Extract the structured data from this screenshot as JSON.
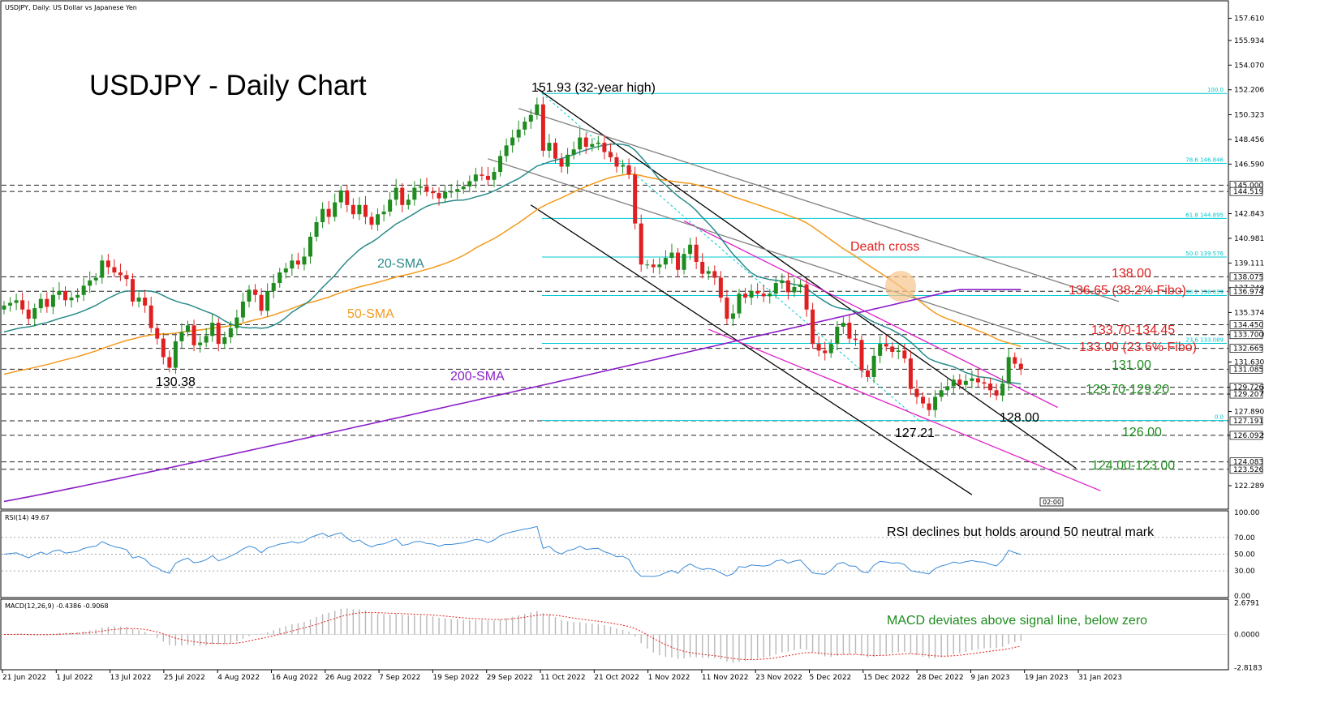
{
  "header": {
    "symbol_line": "USDJPY, Daily:  US Dollar vs Japanese Yen",
    "main_title": "USDJPY - Daily Chart"
  },
  "colors": {
    "bull": "#1e8c1e",
    "bear": "#e02020",
    "sma20": "#2a8a8a",
    "sma50": "#f39a1e",
    "sma200": "#8b1fc8",
    "fibo": "#00c8d0",
    "channel_black": "#000000",
    "channel_magenta": "#e020c8",
    "channel_gray": "#808080",
    "rsi": "#3a8ad6",
    "macd_signal": "#e02020"
  },
  "chart_data": [
    {
      "type": "candlestick",
      "ylim": [
        121.0,
        158.5
      ],
      "x_labels": [
        "21 Jun 2022",
        "1 Jul 2022",
        "13 Jul 2022",
        "25 Jul 2022",
        "4 Aug 2022",
        "16 Aug 2022",
        "26 Aug 2022",
        "7 Sep 2022",
        "19 Sep 2022",
        "29 Sep 2022",
        "11 Oct 2022",
        "21 Oct 2022",
        "1 Nov 2022",
        "11 Nov 2022",
        "23 Nov 2022",
        "5 Dec 2022",
        "15 Dec 2022",
        "28 Dec 2022",
        "9 Jan 2023",
        "19 Jan 2023",
        "31 Jan 2023"
      ],
      "y_ticks": [
        "157.610",
        "155.934",
        "154.070",
        "152.206",
        "150.323",
        "148.456",
        "146.590",
        "142.843",
        "140.981",
        "139.111",
        "137.240",
        "135.374",
        "133.700",
        "131.630",
        "129.726",
        "129.207",
        "127.890",
        "126.092",
        "122.289"
      ],
      "price_boxes": [
        "145.000",
        "144.519",
        "138.075",
        "136.974",
        "134.450",
        "133.700",
        "132.665",
        "131.085",
        "129.726",
        "129.207",
        "127.191",
        "126.092",
        "124.083",
        "123.526"
      ],
      "closes": [
        135.9,
        136.1,
        136.3,
        135.6,
        134.9,
        135.7,
        136.4,
        135.8,
        136.7,
        137.0,
        136.3,
        136.5,
        136.7,
        137.4,
        137.8,
        138.0,
        139.3,
        138.8,
        138.4,
        138.2,
        137.9,
        136.2,
        136.5,
        135.9,
        134.2,
        133.4,
        132.0,
        131.2,
        133.2,
        133.9,
        134.4,
        132.9,
        133.1,
        133.6,
        134.6,
        133.0,
        133.5,
        134.2,
        135.0,
        136.2,
        137.1,
        136.7,
        135.5,
        137.0,
        137.6,
        138.4,
        138.7,
        139.3,
        139.0,
        139.6,
        141.1,
        142.2,
        143.2,
        142.6,
        143.7,
        144.6,
        143.5,
        142.8,
        143.5,
        142.6,
        142.0,
        142.8,
        143.0,
        143.9,
        144.8,
        143.5,
        143.9,
        144.8,
        144.9,
        144.5,
        144.4,
        144.0,
        144.5,
        144.5,
        144.7,
        144.9,
        145.3,
        145.8,
        145.7,
        145.4,
        146.0,
        147.2,
        148.0,
        148.6,
        149.2,
        149.8,
        150.3,
        151.1,
        147.6,
        148.2,
        147.0,
        146.4,
        147.3,
        147.7,
        148.6,
        147.9,
        148.1,
        148.2,
        147.5,
        147.1,
        146.4,
        146.5,
        145.8,
        142.1,
        139.0,
        139.0,
        138.8,
        139.0,
        139.5,
        139.9,
        138.6,
        139.8,
        140.5,
        139.2,
        138.3,
        138.5,
        138.0,
        136.5,
        134.9,
        135.3,
        136.8,
        136.5,
        137.0,
        136.8,
        136.6,
        136.8,
        137.6,
        137.8,
        136.9,
        137.3,
        137.5,
        135.6,
        133.0,
        132.5,
        132.3,
        133.0,
        134.3,
        134.6,
        133.4,
        133.3,
        131.0,
        130.5,
        132.1,
        133.0,
        132.8,
        132.4,
        132.5,
        131.9,
        129.6,
        129.0,
        128.5,
        128.0,
        129.0,
        129.5,
        129.8,
        130.3,
        129.9,
        130.2,
        130.4,
        130.1,
        130.0,
        129.5,
        129.1,
        130.0,
        132.0,
        131.5,
        131.1
      ],
      "annotations": {
        "high": "151.93 (32-year high)",
        "low_jul": "130.38",
        "low_jan": "127.21",
        "death_cross": "Death cross",
        "sma20": "20-SMA",
        "sma50": "50-SMA",
        "sma200": "200-SMA",
        "lvl_138": "138.00",
        "lvl_fibo382": "136.65 (38.2% Fibo)",
        "lvl_1337": "133.70-134.45",
        "lvl_fibo236": "133.00 (23.6% Fibo)",
        "lvl_131": "131.00",
        "lvl_1297": "129.70-129.20",
        "lvl_128": "128.00",
        "lvl_126": "126.00",
        "lvl_124": "124.00-123.00"
      },
      "fibo_labels": [
        "100.0",
        "78.6 146.846",
        "61.8 144.895",
        "50.0 139.576",
        "38.2 136.659",
        "23.6 133.089",
        "0.0"
      ],
      "time_box": "02:00"
    },
    {
      "type": "line",
      "name": "RSI(14) 49.67",
      "ylim": [
        0,
        100
      ],
      "y_ticks": [
        "100.00",
        "70.00",
        "50.00",
        "30.00",
        "0.00"
      ],
      "annotation": "RSI declines but holds around 50 neutral mark"
    },
    {
      "type": "bar",
      "name": "MACD(12,26,9) -0.4386 -0.9068",
      "ylim": [
        -2.8,
        2.8
      ],
      "y_ticks": [
        "2.6791",
        "0.0000",
        "-2.8183"
      ],
      "annotation": "MACD deviates above signal line, below zero"
    }
  ]
}
